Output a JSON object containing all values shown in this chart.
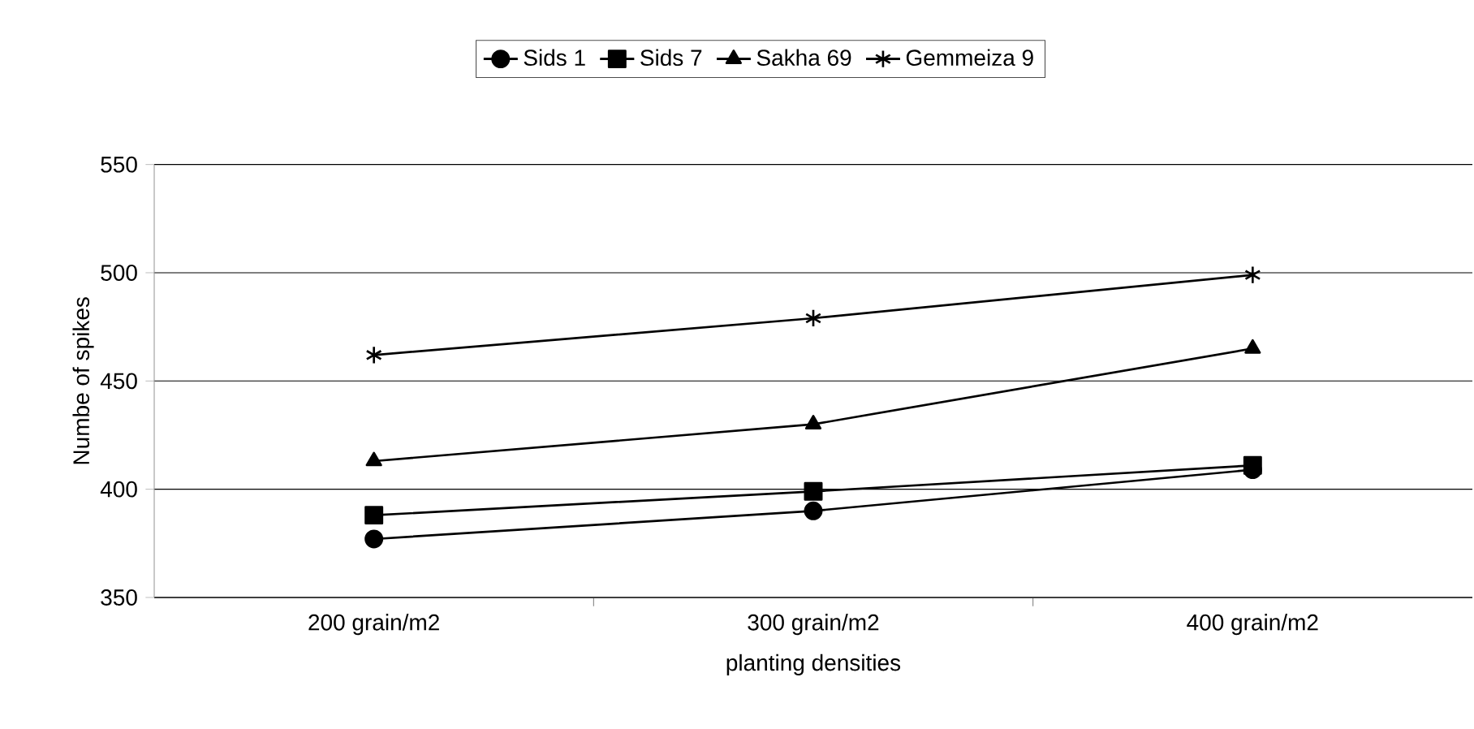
{
  "chart_data": {
    "type": "line",
    "xlabel": "planting densities",
    "ylabel": "Numbe of spikes",
    "categories": [
      "200 grain/m2",
      "300 grain/m2",
      "400 grain/m2"
    ],
    "series": [
      {
        "name": "Sids 1",
        "color": "#000000",
        "marker": "circle",
        "values": [
          377,
          390,
          409
        ]
      },
      {
        "name": "Sids 7",
        "color": "#000000",
        "marker": "square",
        "values": [
          388,
          399,
          411
        ]
      },
      {
        "name": "Sakha 69",
        "color": "#000000",
        "marker": "triangle",
        "values": [
          413,
          430,
          465
        ]
      },
      {
        "name": "Gemmeiza 9",
        "color": "#000000",
        "marker": "cross",
        "values": [
          462,
          479,
          499
        ]
      }
    ],
    "ylim": [
      350,
      550
    ],
    "yticks": [
      350,
      400,
      450,
      500,
      550
    ],
    "grid": "y",
    "legend": "top",
    "line_style": "solid"
  }
}
